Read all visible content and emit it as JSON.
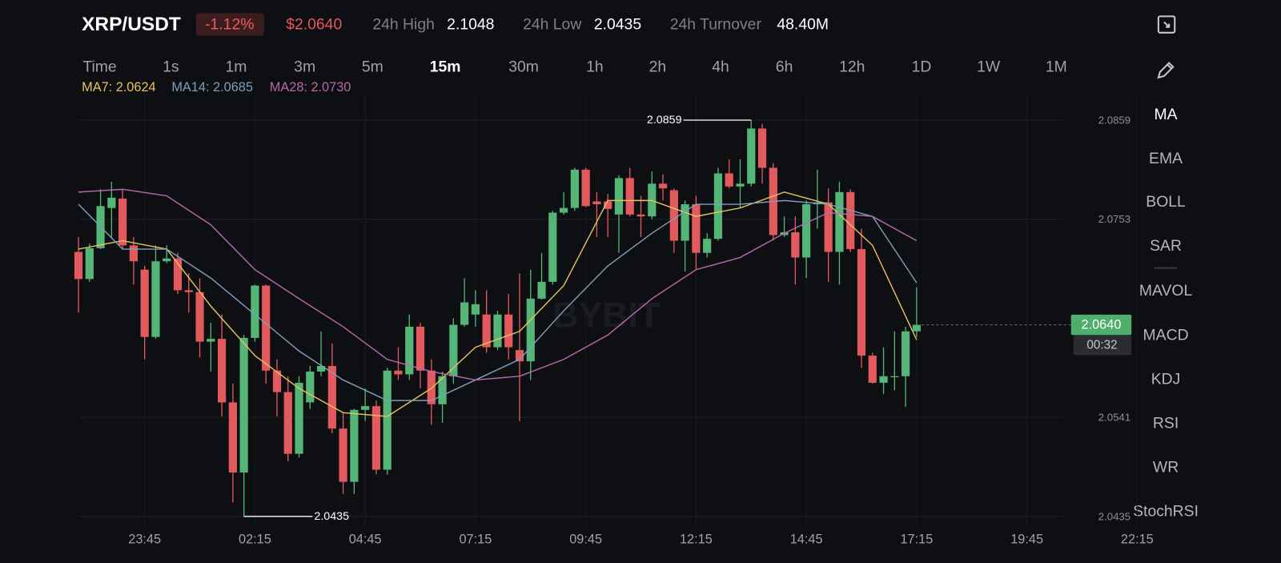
{
  "header": {
    "pair": "XRP/USDT",
    "change": "-1.12%",
    "price": "$2.0640",
    "stats": [
      {
        "label": "24h High",
        "value": "2.1048"
      },
      {
        "label": "24h Low",
        "value": "2.0435"
      },
      {
        "label": "24h Turnover",
        "value": "48.40M"
      }
    ]
  },
  "timeframes": {
    "items": [
      "Time",
      "1s",
      "1m",
      "3m",
      "5m",
      "15m",
      "30m",
      "1h",
      "2h",
      "4h",
      "6h",
      "12h",
      "1D",
      "1W",
      "1M"
    ],
    "selected": 5
  },
  "indicators": {
    "items": [
      "MA",
      "EMA",
      "BOLL",
      "SAR",
      "MAVOL",
      "MACD",
      "KDJ",
      "RSI",
      "WR",
      "StochRSI"
    ],
    "selected": 0
  },
  "chart_data": {
    "type": "candlestick",
    "watermark": "BYBIT",
    "up_color": "#55b577",
    "down_color": "#e25a5e",
    "categories": [
      null,
      null,
      null,
      null,
      null,
      null,
      "23:45",
      null,
      null,
      null,
      null,
      null,
      null,
      null,
      null,
      null,
      "02:15",
      null,
      null,
      null,
      null,
      null,
      null,
      null,
      null,
      null,
      "04:45",
      null,
      null,
      null,
      null,
      null,
      null,
      null,
      null,
      null,
      "07:15",
      null,
      null,
      null,
      null,
      null,
      null,
      null,
      null,
      null,
      "09:45",
      null,
      null,
      null,
      null,
      null,
      null,
      null,
      null,
      null,
      "12:15",
      null,
      null,
      null,
      null,
      null,
      null,
      null,
      null,
      null,
      "14:45",
      null,
      null,
      null,
      null,
      null,
      null,
      null,
      null,
      null,
      "17:15",
      null,
      null,
      null,
      null,
      null,
      null,
      null,
      null,
      null,
      "19:45",
      null,
      null,
      null,
      null,
      null,
      null,
      null,
      null,
      null,
      "22:15"
    ],
    "open": [
      2.0718,
      2.0689,
      2.0722,
      2.0765,
      2.0775,
      2.0725,
      2.0699,
      2.0627,
      2.0708,
      2.0711,
      2.0677,
      2.0675,
      2.0622,
      2.0625,
      2.0557,
      2.0482,
      2.0626,
      2.0682,
      2.0591,
      2.0568,
      2.0502,
      2.0557,
      2.059,
      2.0596,
      2.0529,
      2.0472,
      2.0549,
      2.0553,
      2.0485,
      2.0591,
      2.0587,
      2.0638,
      2.0591,
      2.0555,
      2.0585,
      2.064,
      2.0651,
      2.0651,
      2.0616,
      2.0651,
      2.0613,
      2.0601,
      2.0668,
      2.0686,
      2.076,
      2.0765,
      2.0806,
      2.0772,
      2.0772,
      2.0758,
      2.0797,
      2.0758,
      2.0756,
      2.0791,
      2.0784,
      2.073,
      2.0769,
      2.0717,
      2.0732,
      2.0802,
      2.0788,
      2.0791,
      2.085,
      2.0808,
      2.0736,
      2.0739,
      2.0712,
      2.0769,
      2.0771,
      2.0718,
      2.0782,
      2.0721,
      2.0607,
      2.0578,
      2.0584,
      2.0585,
      2.0633,
      null,
      null,
      null,
      null,
      null,
      null,
      null,
      null,
      null,
      null,
      null,
      null,
      null,
      null,
      null,
      null,
      null,
      null,
      null,
      null
    ],
    "high": [
      2.0734,
      2.0727,
      2.0785,
      2.0793,
      2.0785,
      2.0734,
      2.0703,
      2.0725,
      2.0725,
      2.0717,
      2.0695,
      2.069,
      2.0642,
      2.0651,
      2.0577,
      2.0629,
      2.0683,
      2.0683,
      2.0603,
      2.0585,
      2.0585,
      2.0596,
      2.0633,
      2.062,
      2.0546,
      2.055,
      2.0572,
      2.0559,
      2.0594,
      2.0616,
      2.0651,
      2.0642,
      2.0603,
      2.059,
      2.0647,
      2.069,
      2.0677,
      2.0677,
      2.0655,
      2.0673,
      2.0695,
      2.0699,
      2.0717,
      2.0762,
      2.0782,
      2.0808,
      2.0808,
      2.0782,
      2.078,
      2.08,
      2.0808,
      2.0778,
      2.0804,
      2.0801,
      2.0786,
      2.0773,
      2.0778,
      2.0738,
      2.0808,
      2.0817,
      2.0817,
      2.0859,
      2.0855,
      2.0813,
      2.0756,
      2.0756,
      2.0773,
      2.0806,
      2.0786,
      2.0793,
      2.0785,
      2.0743,
      2.061,
      2.0616,
      2.0633,
      2.0638,
      2.068,
      null,
      null,
      null,
      null,
      null,
      null,
      null,
      null,
      null,
      null,
      null,
      null,
      null,
      null,
      null,
      null,
      null,
      null,
      null,
      null
    ],
    "low": [
      2.0653,
      2.0686,
      2.0721,
      2.0734,
      2.0721,
      2.0683,
      2.0603,
      2.0625,
      2.0706,
      2.0673,
      2.0653,
      2.0605,
      2.059,
      2.0542,
      2.045,
      2.0435,
      2.0622,
      2.0577,
      2.0542,
      2.0494,
      2.0498,
      2.055,
      2.0585,
      2.0524,
      2.0459,
      2.0459,
      2.0537,
      2.048,
      2.048,
      2.0581,
      2.0581,
      2.0572,
      2.0533,
      2.0535,
      2.0577,
      2.0638,
      2.0638,
      2.061,
      2.0613,
      2.0603,
      2.0537,
      2.0581,
      2.0667,
      2.0683,
      2.0758,
      2.0762,
      2.0766,
      2.0734,
      2.0734,
      2.0717,
      2.0756,
      2.0734,
      2.0753,
      2.0773,
      2.0717,
      2.0697,
      2.0699,
      2.0712,
      2.073,
      2.0786,
      2.0765,
      2.0788,
      2.0791,
      2.073,
      2.0734,
      2.0683,
      2.069,
      2.0743,
      2.0686,
      2.0683,
      2.0718,
      2.0594,
      2.0577,
      2.0566,
      2.057,
      2.0552,
      2.0627,
      null,
      null,
      null,
      null,
      null,
      null,
      null,
      null,
      null,
      null,
      null,
      null,
      null,
      null,
      null,
      null,
      null,
      null,
      null,
      null
    ],
    "close": [
      2.0689,
      2.0722,
      2.0767,
      2.0776,
      2.0725,
      2.0708,
      2.0627,
      2.0708,
      2.0711,
      2.0677,
      2.0675,
      2.0622,
      2.0625,
      2.0557,
      2.0482,
      2.0626,
      2.0682,
      2.0591,
      2.0568,
      2.0502,
      2.0578,
      2.059,
      2.0596,
      2.0529,
      2.0472,
      2.0549,
      2.0553,
      2.0485,
      2.0591,
      2.0587,
      2.0638,
      2.0591,
      2.0555,
      2.0585,
      2.064,
      2.0664,
      2.0662,
      2.0616,
      2.0651,
      2.0616,
      2.0601,
      2.0668,
      2.0686,
      2.076,
      2.0765,
      2.0806,
      2.0767,
      2.0769,
      2.0764,
      2.0797,
      2.0758,
      2.0756,
      2.0791,
      2.0786,
      2.073,
      2.0769,
      2.0717,
      2.0732,
      2.0802,
      2.0788,
      2.0791,
      2.085,
      2.0808,
      2.0736,
      2.0739,
      2.0712,
      2.0769,
      2.0771,
      2.0718,
      2.0782,
      2.0721,
      2.0607,
      2.0578,
      2.0585,
      2.0585,
      2.0633,
      2.064,
      null,
      null,
      null,
      null,
      null,
      null,
      null,
      null,
      null,
      null,
      null,
      null,
      null,
      null,
      null,
      null,
      null,
      null,
      null,
      null
    ],
    "series": [
      {
        "name": "MA7: 2.0624",
        "color": "#e6c25f",
        "x": [
          0,
          4,
          8,
          12,
          16,
          20,
          24,
          28,
          32,
          36,
          40,
          44,
          48,
          52,
          56,
          60,
          64,
          68,
          72,
          76
        ],
        "values": [
          2.0721,
          2.073,
          2.0721,
          2.066,
          2.0607,
          2.0572,
          2.0546,
          2.0542,
          2.0572,
          2.0616,
          2.0633,
          2.0682,
          2.0773,
          2.0773,
          2.0756,
          2.0765,
          2.0782,
          2.0769,
          2.0725,
          2.0624
        ]
      },
      {
        "name": "MA14: 2.0685",
        "color": "#7c9fbd",
        "x": [
          0,
          4,
          8,
          12,
          16,
          20,
          24,
          28,
          32,
          36,
          40,
          44,
          48,
          52,
          56,
          60,
          64,
          68,
          72,
          76
        ],
        "values": [
          2.0769,
          2.0721,
          2.0721,
          2.069,
          2.0651,
          2.0612,
          2.0581,
          2.0559,
          2.0559,
          2.0581,
          2.0603,
          2.0655,
          2.0703,
          2.0738,
          2.0769,
          2.0769,
          2.0773,
          2.0769,
          2.0756,
          2.0685
        ]
      },
      {
        "name": "MA28: 2.0730",
        "color": "#b868ad",
        "x": [
          0,
          4,
          8,
          12,
          16,
          20,
          24,
          28,
          32,
          36,
          40,
          44,
          48,
          52,
          56,
          60,
          64,
          68,
          72,
          76
        ],
        "values": [
          2.0782,
          2.0785,
          2.0778,
          2.0747,
          2.0699,
          2.0668,
          2.0638,
          2.0603,
          2.059,
          2.0581,
          2.0585,
          2.0603,
          2.0629,
          2.0668,
          2.0699,
          2.0712,
          2.0738,
          2.076,
          2.0756,
          2.073
        ]
      }
    ],
    "ylim": [
      2.0435,
      2.0859
    ],
    "yticks": [
      2.0435,
      2.0541,
      2.0753,
      2.0859
    ],
    "grid": true,
    "annotations": [
      {
        "label": "2.0859",
        "value": 2.0859,
        "index": 61
      },
      {
        "label": "2.0435",
        "value": 2.0435,
        "index": 15
      }
    ],
    "last_price": {
      "label": "2.0640",
      "value": 2.064,
      "countdown": "00:32"
    }
  }
}
